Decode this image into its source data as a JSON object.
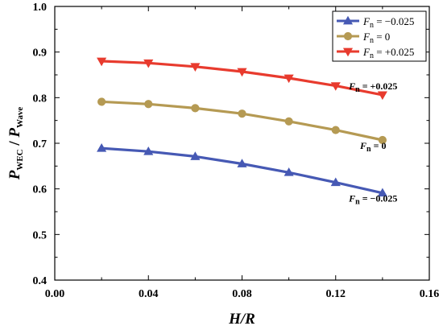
{
  "chart_data": {
    "type": "line",
    "xlabel": "H/R",
    "ylabel": {
      "p1": "P",
      "s1": "WEC",
      "sep": " / ",
      "p2": "P",
      "s2": "Wave"
    },
    "xlim": [
      0.0,
      0.16
    ],
    "ylim": [
      0.4,
      1.0
    ],
    "x_ticks": [
      "0.00",
      "0.04",
      "0.08",
      "0.12",
      "0.16"
    ],
    "y_ticks": [
      "0.4",
      "0.5",
      "0.6",
      "0.7",
      "0.8",
      "0.9",
      "1.0"
    ],
    "grid": false,
    "legend_position": "top-right",
    "x": [
      0.02,
      0.04,
      0.06,
      0.08,
      0.1,
      0.12,
      0.14
    ],
    "series": [
      {
        "name": "Fn = −0.025",
        "name_var": "F",
        "name_sub": "n",
        "name_rest": " = −0.025",
        "color": "#4659b4",
        "marker": "triangle-up",
        "values": [
          0.689,
          0.682,
          0.671,
          0.655,
          0.636,
          0.614,
          0.591
        ]
      },
      {
        "name": "Fn = 0",
        "name_var": "F",
        "name_sub": "n",
        "name_rest": " = 0",
        "color": "#b59a53",
        "marker": "circle",
        "values": [
          0.791,
          0.786,
          0.777,
          0.765,
          0.748,
          0.729,
          0.707
        ]
      },
      {
        "name": "Fn = +0.025",
        "name_var": "F",
        "name_sub": "n",
        "name_rest": " = +0.025",
        "color": "#e83b2e",
        "marker": "triangle-down",
        "values": [
          0.88,
          0.876,
          0.868,
          0.857,
          0.843,
          0.826,
          0.806
        ]
      }
    ],
    "annotations": [
      {
        "var": "F",
        "sub": "n",
        "rest": " = +0.025",
        "x": 0.136,
        "y": 0.818
      },
      {
        "var": "F",
        "sub": "n",
        "rest": " = 0",
        "x": 0.136,
        "y": 0.688
      },
      {
        "var": "F",
        "sub": "n",
        "rest": " = −0.025",
        "x": 0.136,
        "y": 0.572
      }
    ]
  }
}
